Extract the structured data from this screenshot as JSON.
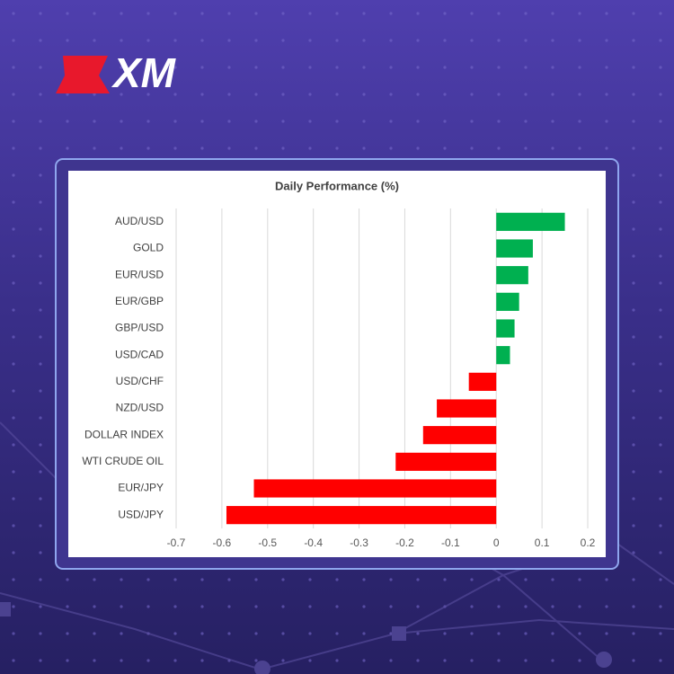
{
  "brand": "XM",
  "chart_data": {
    "type": "hbar",
    "title": "Daily Performance  (%)",
    "categories": [
      "AUD/USD",
      "GOLD",
      "EUR/USD",
      "EUR/GBP",
      "GBP/USD",
      "USD/CAD",
      "USD/CHF",
      "NZD/USD",
      "DOLLAR INDEX",
      "WTI CRUDE OIL",
      "EUR/JPY",
      "USD/JPY"
    ],
    "values": [
      0.15,
      0.08,
      0.07,
      0.05,
      0.04,
      0.03,
      -0.06,
      -0.13,
      -0.16,
      -0.22,
      -0.53,
      -0.59
    ],
    "positive_color": "#00b050",
    "negative_color": "#ff0000",
    "xlim": [
      -0.7,
      0.2
    ],
    "xticks": [
      -0.7,
      -0.6,
      -0.5,
      -0.4,
      -0.3,
      -0.2,
      -0.1,
      0,
      0.1,
      0.2
    ],
    "grid": true
  }
}
